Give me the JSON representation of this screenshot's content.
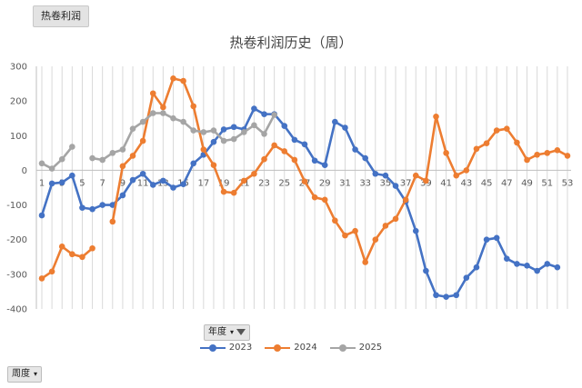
{
  "sheet_tab": {
    "label": "热卷利润"
  },
  "pivot": {
    "year_field": "年度",
    "week_field": "周度"
  },
  "chart_data": {
    "type": "line",
    "title": "热卷利润历史（周）",
    "xlabel": "",
    "ylabel": "",
    "x": [
      1,
      2,
      3,
      4,
      5,
      6,
      7,
      8,
      9,
      10,
      11,
      12,
      13,
      14,
      15,
      16,
      17,
      18,
      19,
      20,
      21,
      22,
      23,
      24,
      25,
      26,
      27,
      28,
      29,
      30,
      31,
      32,
      33,
      34,
      35,
      36,
      37,
      38,
      39,
      40,
      41,
      42,
      43,
      44,
      45,
      46,
      47,
      48,
      49,
      50,
      51,
      52,
      53
    ],
    "x_ticks": [
      1,
      3,
      5,
      7,
      9,
      11,
      13,
      15,
      17,
      19,
      21,
      23,
      25,
      27,
      29,
      31,
      33,
      35,
      37,
      39,
      41,
      43,
      45,
      47,
      49,
      51,
      53
    ],
    "ylim": [
      -400,
      300
    ],
    "y_ticks": [
      300,
      200,
      100,
      0,
      -100,
      -200,
      -300,
      -400
    ],
    "grid": "vertical",
    "legend": "bottom",
    "series": [
      {
        "name": "2023",
        "color": "#4472c4",
        "values": [
          -130,
          -38,
          -35,
          -15,
          -108,
          -112,
          -100,
          -100,
          -72,
          -28,
          -10,
          -42,
          -30,
          -50,
          -40,
          20,
          45,
          82,
          118,
          125,
          118,
          178,
          162,
          162,
          128,
          88,
          75,
          28,
          15,
          140,
          123,
          60,
          35,
          -10,
          -15,
          -45,
          -90,
          -175,
          -290,
          -360,
          -365,
          -360,
          -310,
          -280,
          -200,
          -195,
          -255,
          -270,
          -275,
          -290,
          -270,
          -280,
          null
        ]
      },
      {
        "name": "2024",
        "color": "#ed7d31",
        "values": [
          -312,
          -292,
          -220,
          -242,
          -250,
          -225,
          null,
          -148,
          12,
          42,
          85,
          222,
          182,
          265,
          258,
          185,
          60,
          15,
          -62,
          -65,
          -30,
          -10,
          32,
          72,
          55,
          30,
          -32,
          -78,
          -85,
          -145,
          -188,
          -175,
          -265,
          -200,
          -160,
          -140,
          -85,
          -15,
          -30,
          155,
          50,
          -15,
          0,
          62,
          78,
          115,
          120,
          80,
          30,
          45,
          50,
          58,
          42
        ]
      },
      {
        "name": "2025",
        "color": "#a5a5a5",
        "values": [
          20,
          5,
          32,
          68,
          null,
          35,
          30,
          50,
          60,
          120,
          140,
          165,
          165,
          150,
          140,
          115,
          110,
          115,
          85,
          90,
          110,
          130,
          105,
          160,
          null,
          null,
          null,
          null,
          null,
          null,
          null,
          null,
          null,
          null,
          null,
          null,
          null,
          null,
          null,
          null,
          null,
          null,
          null,
          null,
          null,
          null,
          null,
          null,
          null,
          null,
          null,
          null,
          null
        ]
      }
    ]
  }
}
